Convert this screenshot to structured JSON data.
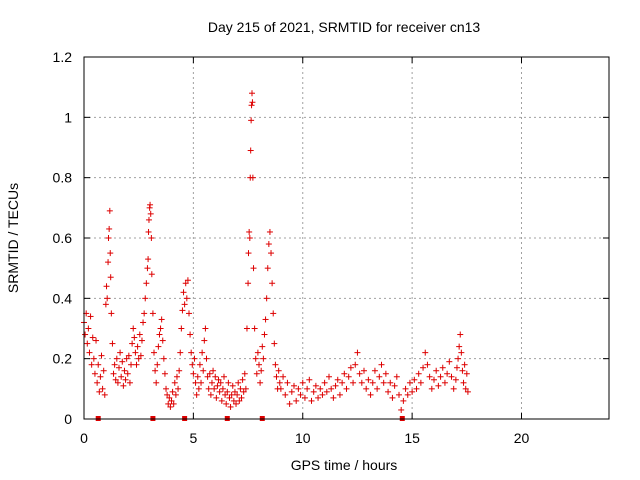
{
  "chart_data": {
    "type": "scatter",
    "title": "Day 215 of 2021, SRMTID for receiver cn13",
    "xlabel": "GPS time / hours",
    "ylabel": "SRMTID / TECUs",
    "xlim": [
      0,
      24
    ],
    "ylim": [
      0,
      1.2
    ],
    "xticks": [
      0,
      5,
      10,
      15,
      20
    ],
    "yticks": [
      0,
      0.2,
      0.4,
      0.6,
      0.8,
      1,
      1.2
    ],
    "xtick_labels": [
      "0",
      "5",
      "10",
      "15",
      "20"
    ],
    "ytick_labels": [
      "0",
      "0.2",
      "0.4",
      "0.6",
      "0.8",
      "1",
      "1.2"
    ],
    "grid": true,
    "marker": "plus",
    "color": "#dd0000",
    "series": [
      {
        "name": "SRMTID",
        "points": [
          [
            0.0,
            0.32
          ],
          [
            0.05,
            0.28
          ],
          [
            0.1,
            0.35
          ],
          [
            0.15,
            0.25
          ],
          [
            0.2,
            0.3
          ],
          [
            0.25,
            0.22
          ],
          [
            0.3,
            0.34
          ],
          [
            0.35,
            0.18
          ],
          [
            0.4,
            0.27
          ],
          [
            0.45,
            0.2
          ],
          [
            0.5,
            0.15
          ],
          [
            0.55,
            0.26
          ],
          [
            0.6,
            0.12
          ],
          [
            0.65,
            0.18
          ],
          [
            0.7,
            0.09
          ],
          [
            0.75,
            0.14
          ],
          [
            0.8,
            0.21
          ],
          [
            0.85,
            0.1
          ],
          [
            0.9,
            0.16
          ],
          [
            0.95,
            0.08
          ],
          [
            1.0,
            0.38
          ],
          [
            1.03,
            0.44
          ],
          [
            1.06,
            0.4
          ],
          [
            1.1,
            0.52
          ],
          [
            1.12,
            0.6
          ],
          [
            1.15,
            0.63
          ],
          [
            1.18,
            0.69
          ],
          [
            1.2,
            0.55
          ],
          [
            1.22,
            0.47
          ],
          [
            1.25,
            0.35
          ],
          [
            1.3,
            0.25
          ],
          [
            1.35,
            0.15
          ],
          [
            1.4,
            0.18
          ],
          [
            1.45,
            0.13
          ],
          [
            1.5,
            0.2
          ],
          [
            1.55,
            0.12
          ],
          [
            1.6,
            0.17
          ],
          [
            1.65,
            0.22
          ],
          [
            1.7,
            0.14
          ],
          [
            1.75,
            0.19
          ],
          [
            1.8,
            0.11
          ],
          [
            1.85,
            0.16
          ],
          [
            1.9,
            0.13
          ],
          [
            1.95,
            0.2
          ],
          [
            2.0,
            0.15
          ],
          [
            2.05,
            0.21
          ],
          [
            2.1,
            0.12
          ],
          [
            2.15,
            0.18
          ],
          [
            2.2,
            0.25
          ],
          [
            2.25,
            0.3
          ],
          [
            2.3,
            0.27
          ],
          [
            2.35,
            0.22
          ],
          [
            2.4,
            0.18
          ],
          [
            2.45,
            0.24
          ],
          [
            2.5,
            0.2
          ],
          [
            2.55,
            0.28
          ],
          [
            2.6,
            0.21
          ],
          [
            2.65,
            0.26
          ],
          [
            2.7,
            0.32
          ],
          [
            2.75,
            0.35
          ],
          [
            2.8,
            0.4
          ],
          [
            2.85,
            0.45
          ],
          [
            2.9,
            0.5
          ],
          [
            2.93,
            0.53
          ],
          [
            2.95,
            0.62
          ],
          [
            2.97,
            0.66
          ],
          [
            3.0,
            0.7
          ],
          [
            3.02,
            0.71
          ],
          [
            3.05,
            0.68
          ],
          [
            3.08,
            0.6
          ],
          [
            3.1,
            0.48
          ],
          [
            3.15,
            0.35
          ],
          [
            3.2,
            0.22
          ],
          [
            3.25,
            0.16
          ],
          [
            3.3,
            0.12
          ],
          [
            3.35,
            0.18
          ],
          [
            3.4,
            0.24
          ],
          [
            3.45,
            0.28
          ],
          [
            3.5,
            0.3
          ],
          [
            3.55,
            0.33
          ],
          [
            3.6,
            0.26
          ],
          [
            3.65,
            0.2
          ],
          [
            3.7,
            0.15
          ],
          [
            3.75,
            0.1
          ],
          [
            3.8,
            0.08
          ],
          [
            3.85,
            0.05
          ],
          [
            3.9,
            0.07
          ],
          [
            3.95,
            0.04
          ],
          [
            4.0,
            0.06
          ],
          [
            4.05,
            0.09
          ],
          [
            4.1,
            0.05
          ],
          [
            4.15,
            0.12
          ],
          [
            4.2,
            0.08
          ],
          [
            4.25,
            0.14
          ],
          [
            4.3,
            0.1
          ],
          [
            4.35,
            0.16
          ],
          [
            4.4,
            0.22
          ],
          [
            4.45,
            0.3
          ],
          [
            4.5,
            0.36
          ],
          [
            4.55,
            0.42
          ],
          [
            4.6,
            0.38
          ],
          [
            4.65,
            0.45
          ],
          [
            4.7,
            0.4
          ],
          [
            4.75,
            0.46
          ],
          [
            4.8,
            0.35
          ],
          [
            4.85,
            0.28
          ],
          [
            4.9,
            0.22
          ],
          [
            4.95,
            0.18
          ],
          [
            5.0,
            0.15
          ],
          [
            5.05,
            0.2
          ],
          [
            5.1,
            0.12
          ],
          [
            5.15,
            0.08
          ],
          [
            5.2,
            0.14
          ],
          [
            5.25,
            0.1
          ],
          [
            5.3,
            0.18
          ],
          [
            5.35,
            0.12
          ],
          [
            5.4,
            0.22
          ],
          [
            5.45,
            0.16
          ],
          [
            5.5,
            0.26
          ],
          [
            5.55,
            0.3
          ],
          [
            5.6,
            0.2
          ],
          [
            5.65,
            0.14
          ],
          [
            5.7,
            0.1
          ],
          [
            5.75,
            0.15
          ],
          [
            5.8,
            0.08
          ],
          [
            5.85,
            0.12
          ],
          [
            5.9,
            0.16
          ],
          [
            5.95,
            0.1
          ],
          [
            6.0,
            0.14
          ],
          [
            6.05,
            0.07
          ],
          [
            6.1,
            0.11
          ],
          [
            6.15,
            0.13
          ],
          [
            6.2,
            0.09
          ],
          [
            6.25,
            0.12
          ],
          [
            6.3,
            0.06
          ],
          [
            6.35,
            0.1
          ],
          [
            6.4,
            0.14
          ],
          [
            6.45,
            0.08
          ],
          [
            6.5,
            0.05
          ],
          [
            6.55,
            0.09
          ],
          [
            6.6,
            0.12
          ],
          [
            6.65,
            0.07
          ],
          [
            6.7,
            0.04
          ],
          [
            6.75,
            0.08
          ],
          [
            6.8,
            0.11
          ],
          [
            6.85,
            0.06
          ],
          [
            6.9,
            0.09
          ],
          [
            6.95,
            0.05
          ],
          [
            7.0,
            0.08
          ],
          [
            7.05,
            0.12
          ],
          [
            7.1,
            0.06
          ],
          [
            7.15,
            0.1
          ],
          [
            7.2,
            0.07
          ],
          [
            7.25,
            0.13
          ],
          [
            7.3,
            0.09
          ],
          [
            7.35,
            0.15
          ],
          [
            7.4,
            0.1
          ],
          [
            7.45,
            0.3
          ],
          [
            7.5,
            0.45
          ],
          [
            7.52,
            0.55
          ],
          [
            7.55,
            0.62
          ],
          [
            7.58,
            0.6
          ],
          [
            7.6,
            0.8
          ],
          [
            7.62,
            0.89
          ],
          [
            7.64,
            0.99
          ],
          [
            7.66,
            1.04
          ],
          [
            7.68,
            1.08
          ],
          [
            7.7,
            1.05
          ],
          [
            7.72,
            0.8
          ],
          [
            7.75,
            0.5
          ],
          [
            7.8,
            0.3
          ],
          [
            7.85,
            0.2
          ],
          [
            7.9,
            0.15
          ],
          [
            7.95,
            0.22
          ],
          [
            8.0,
            0.18
          ],
          [
            8.05,
            0.12
          ],
          [
            8.1,
            0.16
          ],
          [
            8.15,
            0.24
          ],
          [
            8.2,
            0.2
          ],
          [
            8.25,
            0.28
          ],
          [
            8.3,
            0.33
          ],
          [
            8.35,
            0.4
          ],
          [
            8.4,
            0.5
          ],
          [
            8.45,
            0.58
          ],
          [
            8.5,
            0.62
          ],
          [
            8.55,
            0.55
          ],
          [
            8.6,
            0.45
          ],
          [
            8.65,
            0.35
          ],
          [
            8.7,
            0.25
          ],
          [
            8.75,
            0.18
          ],
          [
            8.8,
            0.14
          ],
          [
            8.85,
            0.1
          ],
          [
            8.9,
            0.16
          ],
          [
            8.95,
            0.12
          ],
          [
            9.0,
            0.1
          ],
          [
            9.1,
            0.14
          ],
          [
            9.2,
            0.08
          ],
          [
            9.3,
            0.12
          ],
          [
            9.4,
            0.05
          ],
          [
            9.5,
            0.09
          ],
          [
            9.6,
            0.11
          ],
          [
            9.7,
            0.06
          ],
          [
            9.8,
            0.1
          ],
          [
            9.9,
            0.08
          ],
          [
            10.0,
            0.12
          ],
          [
            10.1,
            0.07
          ],
          [
            10.2,
            0.1
          ],
          [
            10.3,
            0.13
          ],
          [
            10.4,
            0.06
          ],
          [
            10.5,
            0.09
          ],
          [
            10.6,
            0.11
          ],
          [
            10.7,
            0.07
          ],
          [
            10.8,
            0.1
          ],
          [
            10.9,
            0.08
          ],
          [
            11.0,
            0.12
          ],
          [
            11.1,
            0.09
          ],
          [
            11.2,
            0.14
          ],
          [
            11.3,
            0.1
          ],
          [
            11.4,
            0.07
          ],
          [
            11.5,
            0.11
          ],
          [
            11.6,
            0.13
          ],
          [
            11.7,
            0.08
          ],
          [
            11.8,
            0.12
          ],
          [
            11.9,
            0.15
          ],
          [
            12.0,
            0.1
          ],
          [
            12.1,
            0.14
          ],
          [
            12.2,
            0.17
          ],
          [
            12.3,
            0.12
          ],
          [
            12.4,
            0.18
          ],
          [
            12.5,
            0.22
          ],
          [
            12.6,
            0.15
          ],
          [
            12.7,
            0.12
          ],
          [
            12.8,
            0.16
          ],
          [
            12.9,
            0.1
          ],
          [
            13.0,
            0.13
          ],
          [
            13.1,
            0.08
          ],
          [
            13.2,
            0.12
          ],
          [
            13.3,
            0.16
          ],
          [
            13.4,
            0.1
          ],
          [
            13.5,
            0.14
          ],
          [
            13.6,
            0.18
          ],
          [
            13.7,
            0.12
          ],
          [
            13.8,
            0.15
          ],
          [
            13.9,
            0.09
          ],
          [
            14.0,
            0.12
          ],
          [
            14.1,
            0.07
          ],
          [
            14.2,
            0.11
          ],
          [
            14.3,
            0.14
          ],
          [
            14.4,
            0.08
          ],
          [
            14.5,
            0.03
          ],
          [
            14.6,
            0.06
          ],
          [
            14.7,
            0.1
          ],
          [
            14.8,
            0.08
          ],
          [
            14.9,
            0.12
          ],
          [
            15.0,
            0.09
          ],
          [
            15.1,
            0.13
          ],
          [
            15.2,
            0.1
          ],
          [
            15.3,
            0.15
          ],
          [
            15.4,
            0.12
          ],
          [
            15.5,
            0.17
          ],
          [
            15.6,
            0.22
          ],
          [
            15.7,
            0.18
          ],
          [
            15.8,
            0.14
          ],
          [
            15.9,
            0.1
          ],
          [
            16.0,
            0.13
          ],
          [
            16.1,
            0.16
          ],
          [
            16.2,
            0.11
          ],
          [
            16.3,
            0.14
          ],
          [
            16.4,
            0.17
          ],
          [
            16.5,
            0.12
          ],
          [
            16.6,
            0.15
          ],
          [
            16.7,
            0.19
          ],
          [
            16.8,
            0.14
          ],
          [
            16.9,
            0.1
          ],
          [
            17.0,
            0.13
          ],
          [
            17.05,
            0.17
          ],
          [
            17.1,
            0.2
          ],
          [
            17.15,
            0.24
          ],
          [
            17.2,
            0.28
          ],
          [
            17.25,
            0.22
          ],
          [
            17.3,
            0.16
          ],
          [
            17.35,
            0.12
          ],
          [
            17.4,
            0.18
          ],
          [
            17.45,
            0.1
          ],
          [
            17.5,
            0.15
          ],
          [
            17.55,
            0.09
          ]
        ]
      }
    ],
    "gap_markers_x": [
      0.65,
      3.15,
      4.6,
      6.55,
      8.15,
      14.55
    ]
  }
}
